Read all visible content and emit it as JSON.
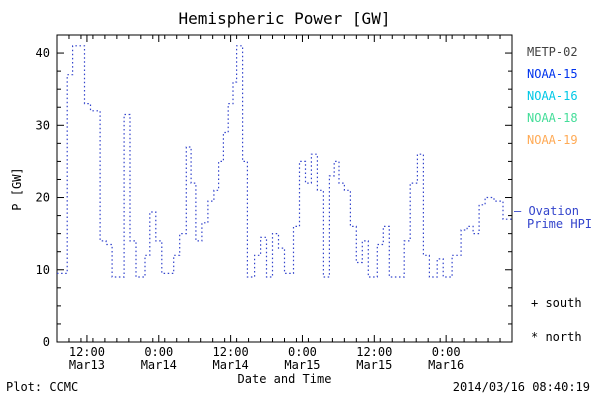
{
  "footer": {
    "credit": "Plot: CCMC",
    "timestamp": "2014/03/16 08:40:19"
  },
  "legend": {
    "satellites": [
      {
        "label": "METP-02",
        "color": "#404040"
      },
      {
        "label": "NOAA-15",
        "color": "#0033ee"
      },
      {
        "label": "NOAA-16",
        "color": "#00c8e6"
      },
      {
        "label": "NOAA-18",
        "color": "#44dd99"
      },
      {
        "label": "NOAA-19",
        "color": "#ffaa55"
      }
    ],
    "ovation": {
      "line1": "– Ovation",
      "line2": "Prime HPI",
      "color": "#3344cc"
    },
    "markers": [
      {
        "text": "+ south"
      },
      {
        "text": "* north"
      }
    ]
  },
  "chart_data": {
    "type": "line",
    "step": true,
    "title": "Hemispheric Power [GW]",
    "xlabel": "Date and Time",
    "ylabel": "P [GW]",
    "line_color": "#3344cc",
    "line_style": "dotted",
    "grid": false,
    "legend_position": "right",
    "ylim": [
      0,
      42.5
    ],
    "yticks": [
      0,
      10,
      20,
      30,
      40
    ],
    "xlim_hours": [
      0,
      76
    ],
    "xticks": [
      {
        "t": 5,
        "time": "12:00",
        "date": "Mar13"
      },
      {
        "t": 17,
        "time": "0:00",
        "date": "Mar14"
      },
      {
        "t": 29,
        "time": "12:00",
        "date": "Mar14"
      },
      {
        "t": 41,
        "time": "0:00",
        "date": "Mar15"
      },
      {
        "t": 53,
        "time": "12:00",
        "date": "Mar15"
      },
      {
        "t": 65,
        "time": "0:00",
        "date": "Mar16"
      }
    ],
    "points": [
      [
        0,
        9.5
      ],
      [
        1.7,
        37
      ],
      [
        2.6,
        41
      ],
      [
        4.6,
        33
      ],
      [
        5.6,
        32
      ],
      [
        7.2,
        14
      ],
      [
        8.2,
        13.5
      ],
      [
        9.2,
        9
      ],
      [
        11.2,
        31.5
      ],
      [
        12.2,
        14
      ],
      [
        13.2,
        9
      ],
      [
        14.7,
        12
      ],
      [
        15.5,
        18
      ],
      [
        16.5,
        14
      ],
      [
        17.5,
        9.5
      ],
      [
        19.5,
        12
      ],
      [
        20.5,
        15
      ],
      [
        21.6,
        27
      ],
      [
        22.4,
        22
      ],
      [
        23.2,
        14
      ],
      [
        24.2,
        16.5
      ],
      [
        25.2,
        19.5
      ],
      [
        26.2,
        21
      ],
      [
        27,
        25
      ],
      [
        27.8,
        29
      ],
      [
        28.6,
        33
      ],
      [
        29.4,
        36
      ],
      [
        30,
        41
      ],
      [
        31,
        25
      ],
      [
        31.8,
        9
      ],
      [
        33,
        12
      ],
      [
        34,
        14.5
      ],
      [
        35,
        9
      ],
      [
        36,
        15
      ],
      [
        37,
        13
      ],
      [
        38,
        9.5
      ],
      [
        39.5,
        16
      ],
      [
        40.5,
        25
      ],
      [
        41.5,
        22
      ],
      [
        42.5,
        26
      ],
      [
        43.5,
        21
      ],
      [
        44.5,
        9
      ],
      [
        45.5,
        23
      ],
      [
        46.3,
        25
      ],
      [
        47.1,
        22
      ],
      [
        48,
        21
      ],
      [
        49,
        16
      ],
      [
        50,
        11
      ],
      [
        51,
        14
      ],
      [
        52,
        9
      ],
      [
        53.5,
        13.5
      ],
      [
        54.5,
        16
      ],
      [
        55.5,
        9
      ],
      [
        58,
        14
      ],
      [
        59,
        22
      ],
      [
        60.2,
        26
      ],
      [
        61.2,
        12
      ],
      [
        62.2,
        9
      ],
      [
        63.5,
        11.5
      ],
      [
        64.5,
        9
      ],
      [
        66,
        12
      ],
      [
        67.5,
        15.5
      ],
      [
        68.5,
        16
      ],
      [
        69.5,
        15
      ],
      [
        70.5,
        19
      ],
      [
        71.5,
        20
      ],
      [
        73,
        19.5
      ],
      [
        74.5,
        17
      ]
    ]
  }
}
